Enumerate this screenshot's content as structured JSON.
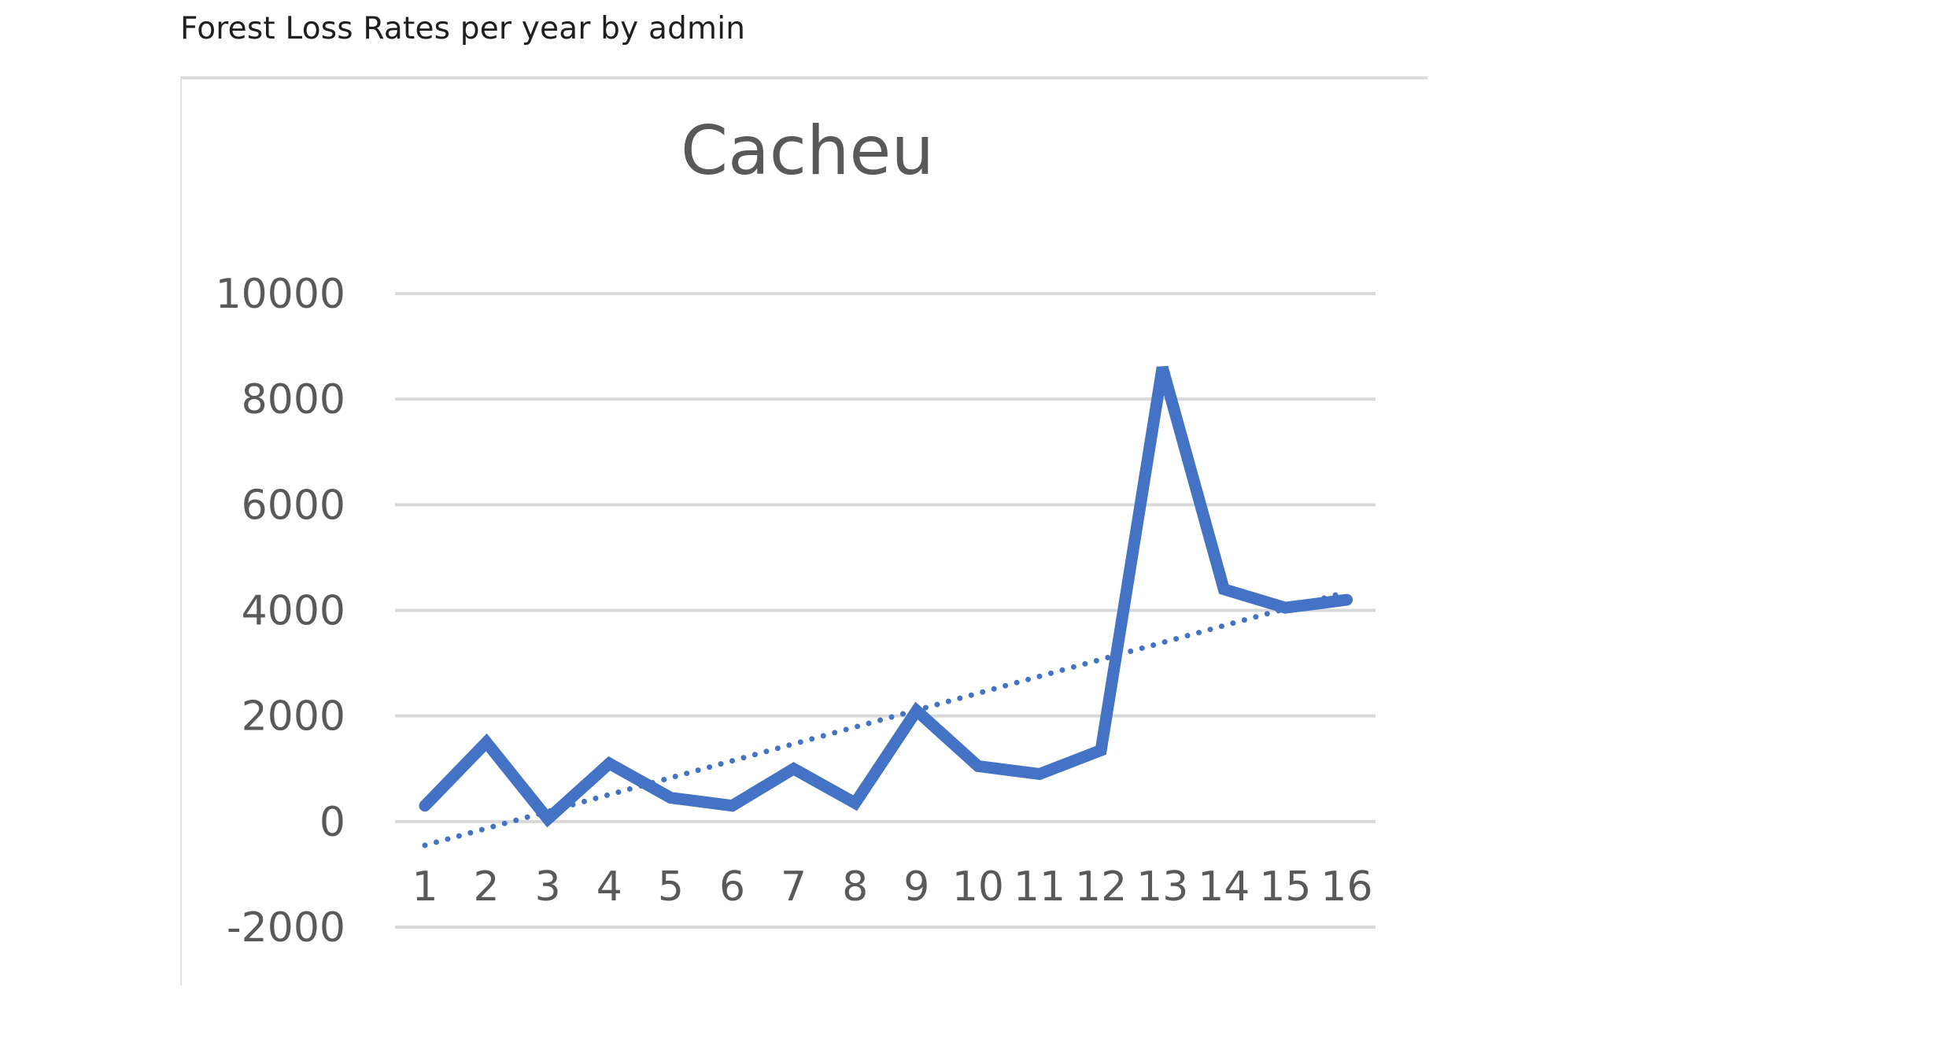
{
  "page": {
    "heading": "Forest Loss Rates per year by admin"
  },
  "chart_data": {
    "type": "line",
    "title": "Cacheu",
    "xlabel": "",
    "ylabel": "",
    "categories": [
      "1",
      "2",
      "3",
      "4",
      "5",
      "6",
      "7",
      "8",
      "9",
      "10",
      "11",
      "12",
      "13",
      "14",
      "15",
      "16"
    ],
    "series": [
      {
        "values": [
          300,
          1500,
          50,
          1100,
          450,
          300,
          1000,
          350,
          2100,
          1050,
          900,
          1350,
          8600,
          4400,
          4050,
          4200
        ],
        "color": "#4472c4",
        "style": "solid"
      }
    ],
    "trendline": {
      "type": "linear",
      "color": "#4472c4",
      "style": "dotted",
      "start": -450,
      "end": 4350
    },
    "yticks": [
      10000,
      8000,
      6000,
      4000,
      2000,
      0,
      -2000
    ],
    "ylim": [
      -2000,
      10000
    ],
    "grid": true,
    "legend": "none"
  }
}
